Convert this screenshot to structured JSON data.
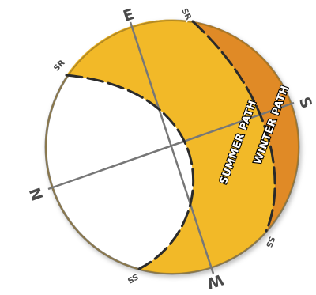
{
  "cardinals": {
    "north": "N",
    "east": "E",
    "south": "S",
    "west": "W"
  },
  "paths": {
    "summer": {
      "label": "SUMMER PATH",
      "sunrise": "SR",
      "sunset": "SS"
    },
    "winter": {
      "label": "WINTER PATH",
      "sunrise": "SR",
      "sunset": "SS"
    }
  },
  "colors": {
    "summer_fill": "#f2b928",
    "winter_fill": "#e08a26",
    "outline": "#7a7a7a",
    "path_dash": "#2a2a2a",
    "axis": "#777777"
  }
}
